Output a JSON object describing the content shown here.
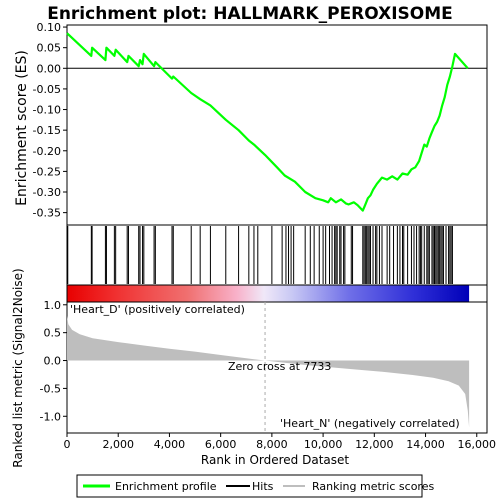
{
  "chart_data": {
    "type": "line",
    "title": "Enrichment plot: HALLMARK_PEROXISOME",
    "top_panel": {
      "ylabel": "Enrichment score (ES)",
      "ylim": [
        -0.38,
        0.105
      ],
      "yticks": [
        0.1,
        0.05,
        0.0,
        -0.05,
        -0.1,
        -0.15,
        -0.2,
        -0.25,
        -0.3,
        -0.35
      ],
      "ytick_labels": [
        "0.10",
        "0.05",
        "0.00",
        "-0.05",
        "-0.10",
        "-0.15",
        "-0.20",
        "-0.25",
        "-0.30",
        "-0.35"
      ],
      "series": [
        {
          "name": "Enrichment profile",
          "color": "#00ff00",
          "points": [
            [
              0,
              0.085
            ],
            [
              950,
              0.03
            ],
            [
              980,
              0.05
            ],
            [
              1500,
              0.02
            ],
            [
              1540,
              0.05
            ],
            [
              1850,
              0.03
            ],
            [
              1900,
              0.045
            ],
            [
              2350,
              0.015
            ],
            [
              2400,
              0.03
            ],
            [
              2800,
              0.005
            ],
            [
              2850,
              0.02
            ],
            [
              2950,
              0.01
            ],
            [
              3000,
              0.035
            ],
            [
              3400,
              0.005
            ],
            [
              3450,
              0.015
            ],
            [
              4100,
              -0.025
            ],
            [
              4150,
              -0.02
            ],
            [
              4850,
              -0.06
            ],
            [
              5200,
              -0.075
            ],
            [
              5600,
              -0.09
            ],
            [
              6200,
              -0.125
            ],
            [
              6700,
              -0.15
            ],
            [
              7100,
              -0.175
            ],
            [
              7300,
              -0.185
            ],
            [
              7733,
              -0.21
            ],
            [
              8200,
              -0.24
            ],
            [
              8500,
              -0.26
            ],
            [
              8900,
              -0.275
            ],
            [
              9300,
              -0.3
            ],
            [
              9700,
              -0.315
            ],
            [
              10000,
              -0.32
            ],
            [
              10200,
              -0.325
            ],
            [
              10300,
              -0.315
            ],
            [
              10500,
              -0.325
            ],
            [
              10700,
              -0.318
            ],
            [
              10900,
              -0.328
            ],
            [
              11000,
              -0.33
            ],
            [
              11200,
              -0.325
            ],
            [
              11350,
              -0.332
            ],
            [
              11550,
              -0.345
            ],
            [
              11650,
              -0.33
            ],
            [
              11750,
              -0.315
            ],
            [
              11850,
              -0.308
            ],
            [
              11950,
              -0.295
            ],
            [
              12100,
              -0.28
            ],
            [
              12300,
              -0.265
            ],
            [
              12500,
              -0.27
            ],
            [
              12700,
              -0.262
            ],
            [
              12900,
              -0.27
            ],
            [
              13100,
              -0.255
            ],
            [
              13300,
              -0.258
            ],
            [
              13450,
              -0.245
            ],
            [
              13600,
              -0.24
            ],
            [
              13750,
              -0.225
            ],
            [
              13850,
              -0.205
            ],
            [
              13950,
              -0.185
            ],
            [
              14050,
              -0.19
            ],
            [
              14150,
              -0.17
            ],
            [
              14250,
              -0.155
            ],
            [
              14350,
              -0.14
            ],
            [
              14450,
              -0.13
            ],
            [
              14550,
              -0.115
            ],
            [
              14650,
              -0.09
            ],
            [
              14750,
              -0.07
            ],
            [
              14850,
              -0.04
            ],
            [
              14950,
              -0.02
            ],
            [
              15050,
              0.005
            ],
            [
              15150,
              0.035
            ],
            [
              15650,
              0.0
            ]
          ]
        }
      ]
    },
    "hits_panel": {
      "name": "Hits",
      "hit_positions": [
        30,
        950,
        980,
        1500,
        1540,
        1850,
        1900,
        2350,
        2400,
        2800,
        2850,
        2950,
        3000,
        3400,
        3450,
        4100,
        4150,
        4850,
        5200,
        5600,
        6200,
        6700,
        7100,
        7300,
        7450,
        8000,
        8400,
        8550,
        8650,
        8750,
        8850,
        9300,
        9500,
        9650,
        9850,
        10000,
        10100,
        10250,
        10350,
        10450,
        10500,
        10550,
        10650,
        10700,
        10800,
        10850,
        11100,
        11150,
        11550,
        11600,
        11650,
        11700,
        11750,
        11800,
        11850,
        11950,
        12050,
        12100,
        12200,
        12300,
        12500,
        12600,
        12750,
        12900,
        13000,
        13100,
        13150,
        13300,
        13450,
        13550,
        13650,
        13750,
        13800,
        13850,
        13950,
        14050,
        14100,
        14150,
        14250,
        14300,
        14350,
        14400,
        14450,
        14500,
        14550,
        14600,
        14650,
        14700,
        14800,
        14900,
        14950,
        15000,
        15050
      ]
    },
    "bottom_panel": {
      "ylabel": "Ranked list metric (Signal2Noise)",
      "xlabel": "Rank in Ordered Dataset",
      "ylim": [
        -1.3,
        1.05
      ],
      "yticks": [
        1.0,
        0.5,
        0.0,
        -0.5,
        -1.0
      ],
      "ytick_labels": [
        "1.0",
        "0.5",
        "0.0",
        "-0.5",
        "-1.0"
      ],
      "xlim": [
        0,
        16400
      ],
      "xticks": [
        0,
        2000,
        4000,
        6000,
        8000,
        10000,
        12000,
        14000,
        16000
      ],
      "xtick_labels": [
        "0",
        "2,000",
        "4,000",
        "6,000",
        "8,000",
        "10,000",
        "12,000",
        "14,000",
        "16,000"
      ],
      "series": [
        {
          "name": "Ranking metric scores",
          "color": "#bebebe",
          "points": [
            [
              0,
              0.8
            ],
            [
              50,
              0.65
            ],
            [
              200,
              0.55
            ],
            [
              500,
              0.47
            ],
            [
              1000,
              0.4
            ],
            [
              2000,
              0.33
            ],
            [
              3000,
              0.27
            ],
            [
              4000,
              0.21
            ],
            [
              5000,
              0.16
            ],
            [
              6000,
              0.1
            ],
            [
              7000,
              0.04
            ],
            [
              7733,
              0.0
            ],
            [
              8500,
              -0.04
            ],
            [
              9500,
              -0.09
            ],
            [
              10500,
              -0.13
            ],
            [
              11500,
              -0.17
            ],
            [
              12500,
              -0.21
            ],
            [
              13500,
              -0.26
            ],
            [
              14300,
              -0.31
            ],
            [
              14900,
              -0.37
            ],
            [
              15300,
              -0.45
            ],
            [
              15550,
              -0.6
            ],
            [
              15650,
              -0.9
            ],
            [
              15700,
              -1.2
            ]
          ]
        }
      ],
      "annotations": {
        "zero_cross": "Zero cross at 7733",
        "positive_label": "'Heart_D' (positively correlated)",
        "negative_label": "'Heart_N' (negatively correlated)"
      },
      "zero_cross_rank": 7733,
      "total_rank": 15700
    },
    "legend": {
      "placement": "bottom",
      "entries": [
        {
          "label": "Enrichment profile",
          "color": "#00ff00"
        },
        {
          "label": "Hits",
          "color": "#000000"
        },
        {
          "label": "Ranking metric scores",
          "color": "#bebebe"
        }
      ]
    },
    "colors": {
      "profile": "#00ff00",
      "hit": "#000000",
      "metric": "#bebebe",
      "positive_label": "#cc0000",
      "negative_label": "#0000cc",
      "zero_cross_line": "#aaaaaa"
    }
  }
}
